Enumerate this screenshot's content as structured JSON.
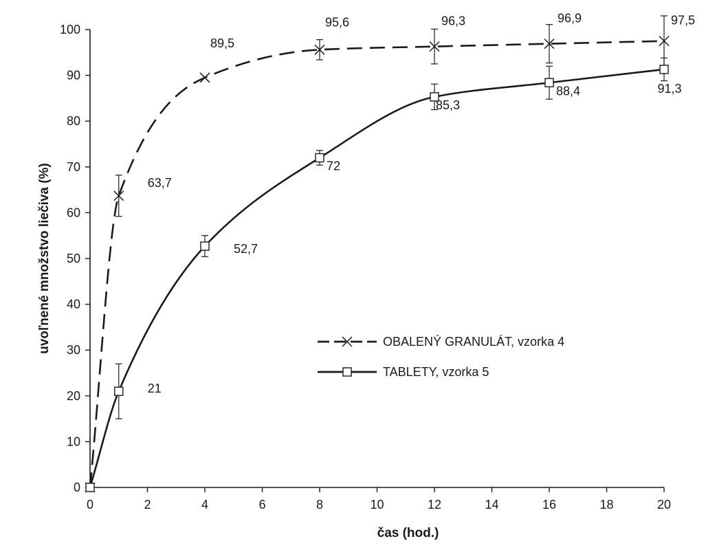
{
  "chart_data": {
    "type": "line",
    "xlabel": "čas (hod.)",
    "ylabel": "uvoľnené množstvo liečiva (%)",
    "xlim": [
      0,
      20
    ],
    "ylim": [
      0,
      100
    ],
    "x_ticks": [
      0,
      2,
      4,
      6,
      8,
      10,
      12,
      14,
      16,
      18,
      20
    ],
    "y_ticks": [
      0,
      10,
      20,
      30,
      40,
      50,
      60,
      70,
      80,
      90,
      100
    ],
    "grid": false,
    "legend_position": "right",
    "series": [
      {
        "name": "OBALENÝ GRANULÁT, vzorka 4",
        "line_style": "dashed",
        "marker": "x",
        "color": "#1a1a1a",
        "x": [
          0,
          1,
          4,
          8,
          12,
          16,
          20
        ],
        "y": [
          0,
          63.7,
          89.5,
          95.6,
          96.3,
          96.9,
          97.5
        ],
        "error": [
          null,
          4.5,
          null,
          2.2,
          3.8,
          4.2,
          5.5
        ],
        "data_labels": [
          "",
          "63,7",
          "89,5",
          "95,6",
          "96,3",
          "96,9",
          "97,5"
        ]
      },
      {
        "name": "TABLETY, vzorka 5",
        "line_style": "solid",
        "marker": "square",
        "color": "#1a1a1a",
        "x": [
          0,
          1,
          4,
          8,
          12,
          16,
          20
        ],
        "y": [
          0,
          21,
          52.7,
          72,
          85.3,
          88.4,
          91.3
        ],
        "error": [
          null,
          6,
          2.3,
          1.6,
          2.8,
          3.6,
          2.5
        ],
        "data_labels": [
          "",
          "21",
          "52,7",
          "72",
          "85,3",
          "88,4",
          "91,3"
        ]
      }
    ]
  }
}
